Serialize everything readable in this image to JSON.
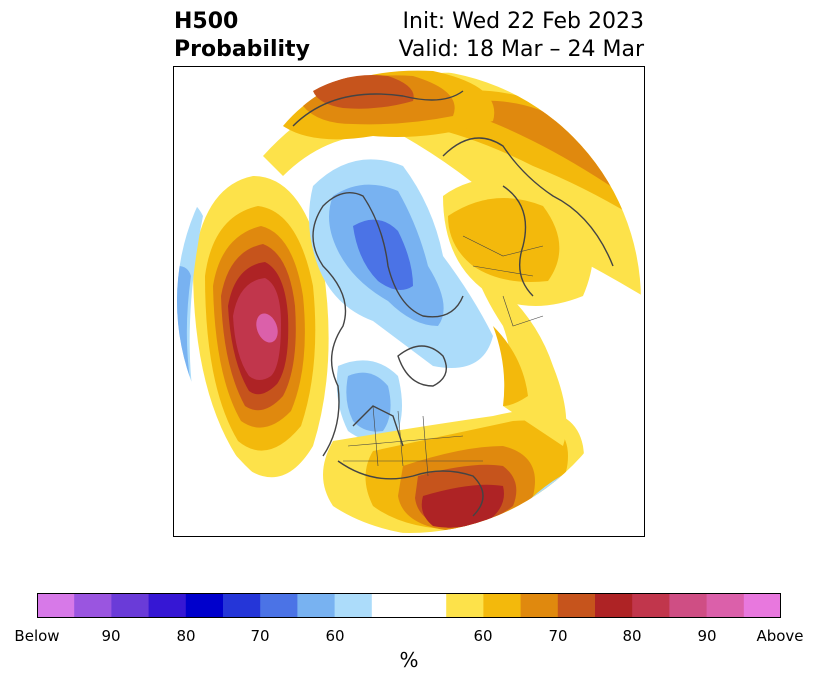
{
  "header": {
    "title_line1": "H500",
    "title_line2": "Probability",
    "init": "Init: Wed 22 Feb 2023",
    "valid": "Valid: 18 Mar – 24 Mar"
  },
  "colorbar": {
    "colors": [
      "#d779e8",
      "#9a55e0",
      "#6a3bd8",
      "#3617d4",
      "#0000cc",
      "#2536d8",
      "#4b73e6",
      "#78b2f1",
      "#acdcfa",
      "#ffffff",
      "#ffffff",
      "#fde24a",
      "#f3b90c",
      "#e0890e",
      "#c6541c",
      "#ae2325",
      "#c1364c",
      "#cf4e84",
      "#db60aa",
      "#e878de"
    ],
    "tick_labels": [
      "Below",
      "90",
      "80",
      "70",
      "60",
      "60",
      "70",
      "80",
      "90",
      "Above"
    ],
    "unit_label": "%"
  },
  "map": {
    "projection": "polar-stereographic",
    "colors": {
      "light_yellow": "#fde24a",
      "yellow": "#f3b90c",
      "orange": "#e0890e",
      "dark_orange": "#c6541c",
      "red": "#ae2325",
      "crimson": "#c1364c",
      "pink": "#db60aa",
      "pale_blue": "#acdcfa",
      "light_blue": "#78b2f1",
      "blue": "#4b73e6",
      "coast": "#444444"
    }
  }
}
